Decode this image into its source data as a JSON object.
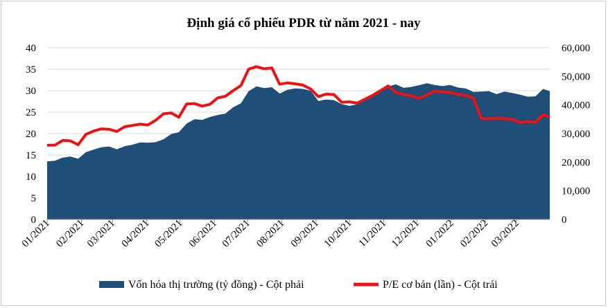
{
  "chart_data": {
    "type": "area",
    "title": "Định giá cổ phiếu PDR từ năm 2021 - nay",
    "x_tick_labels": [
      "01/2021",
      "02/2021",
      "03/2021",
      "04/2021",
      "05/2021",
      "06/2021",
      "07/2021",
      "08/2021",
      "09/2021",
      "10/2021",
      "11/2021",
      "12/2021",
      "01/2022",
      "02/2022",
      "03/2022"
    ],
    "x_range": [
      "2021-01-01",
      "2022-03-31"
    ],
    "y_left": {
      "ticks": [
        "0",
        "5",
        "10",
        "15",
        "20",
        "25",
        "30",
        "35",
        "40"
      ],
      "range": [
        0,
        40
      ]
    },
    "y_right": {
      "ticks": [
        "0",
        "10,000",
        "20,000",
        "30,000",
        "40,000",
        "50,000",
        "60,000"
      ],
      "range": [
        0,
        60000
      ]
    },
    "grid": true,
    "legend_position": "bottom",
    "series": [
      {
        "name": "Vốn hóa thị trường (tỷ đồng) - Cột phải",
        "kind": "area",
        "axis": "right",
        "color": "#1f4e79",
        "points": [
          [
            "2021-01-01",
            20300
          ],
          [
            "2021-01-08",
            20500
          ],
          [
            "2021-01-15",
            21600
          ],
          [
            "2021-01-22",
            22000
          ],
          [
            "2021-01-29",
            21200
          ],
          [
            "2021-02-05",
            23500
          ],
          [
            "2021-02-12",
            24400
          ],
          [
            "2021-02-19",
            25200
          ],
          [
            "2021-02-26",
            25500
          ],
          [
            "2021-03-05",
            24500
          ],
          [
            "2021-03-12",
            25600
          ],
          [
            "2021-03-19",
            26100
          ],
          [
            "2021-03-26",
            26900
          ],
          [
            "2021-04-02",
            26800
          ],
          [
            "2021-04-09",
            27000
          ],
          [
            "2021-04-16",
            28000
          ],
          [
            "2021-04-23",
            29800
          ],
          [
            "2021-04-30",
            30500
          ],
          [
            "2021-05-07",
            33500
          ],
          [
            "2021-05-14",
            35000
          ],
          [
            "2021-05-21",
            34800
          ],
          [
            "2021-05-28",
            35800
          ],
          [
            "2021-06-04",
            36500
          ],
          [
            "2021-06-11",
            37000
          ],
          [
            "2021-06-18",
            39200
          ],
          [
            "2021-06-25",
            40600
          ],
          [
            "2021-07-02",
            44800
          ],
          [
            "2021-07-09",
            46500
          ],
          [
            "2021-07-16",
            45900
          ],
          [
            "2021-07-23",
            46200
          ],
          [
            "2021-07-30",
            44000
          ],
          [
            "2021-08-06",
            45300
          ],
          [
            "2021-08-13",
            45800
          ],
          [
            "2021-08-20",
            45600
          ],
          [
            "2021-08-27",
            45000
          ],
          [
            "2021-09-03",
            41400
          ],
          [
            "2021-09-10",
            41900
          ],
          [
            "2021-09-17",
            41700
          ],
          [
            "2021-09-24",
            40300
          ],
          [
            "2021-10-01",
            39700
          ],
          [
            "2021-10-08",
            40200
          ],
          [
            "2021-10-15",
            41500
          ],
          [
            "2021-10-22",
            42900
          ],
          [
            "2021-10-29",
            44500
          ],
          [
            "2021-11-05",
            46500
          ],
          [
            "2021-11-12",
            47200
          ],
          [
            "2021-11-19",
            46000
          ],
          [
            "2021-11-26",
            46300
          ],
          [
            "2021-12-03",
            46900
          ],
          [
            "2021-12-10",
            47600
          ],
          [
            "2021-12-17",
            47000
          ],
          [
            "2021-12-24",
            46600
          ],
          [
            "2021-12-31",
            47000
          ],
          [
            "2022-01-07",
            46100
          ],
          [
            "2022-01-14",
            45800
          ],
          [
            "2022-01-21",
            44600
          ],
          [
            "2022-01-28",
            44700
          ],
          [
            "2022-02-04",
            44800
          ],
          [
            "2022-02-11",
            43800
          ],
          [
            "2022-02-18",
            44700
          ],
          [
            "2022-02-25",
            44200
          ],
          [
            "2022-03-04",
            43600
          ],
          [
            "2022-03-11",
            42900
          ],
          [
            "2022-03-18",
            43000
          ],
          [
            "2022-03-25",
            45600
          ],
          [
            "2022-03-31",
            44800
          ]
        ]
      },
      {
        "name": "P/E cơ bản (lần) - Cột trái",
        "kind": "line",
        "axis": "left",
        "color": "#ee1111",
        "points": [
          [
            "2021-01-01",
            17.3
          ],
          [
            "2021-01-08",
            17.3
          ],
          [
            "2021-01-15",
            18.4
          ],
          [
            "2021-01-22",
            18.3
          ],
          [
            "2021-01-29",
            17.4
          ],
          [
            "2021-02-05",
            19.8
          ],
          [
            "2021-02-12",
            20.6
          ],
          [
            "2021-02-19",
            21.1
          ],
          [
            "2021-02-26",
            21.0
          ],
          [
            "2021-03-05",
            20.5
          ],
          [
            "2021-03-12",
            21.6
          ],
          [
            "2021-03-19",
            21.9
          ],
          [
            "2021-03-26",
            22.2
          ],
          [
            "2021-04-02",
            22.0
          ],
          [
            "2021-04-09",
            23.1
          ],
          [
            "2021-04-16",
            24.6
          ],
          [
            "2021-04-23",
            24.8
          ],
          [
            "2021-04-30",
            23.8
          ],
          [
            "2021-05-07",
            26.9
          ],
          [
            "2021-05-14",
            27.0
          ],
          [
            "2021-05-21",
            26.4
          ],
          [
            "2021-05-28",
            26.8
          ],
          [
            "2021-06-04",
            28.3
          ],
          [
            "2021-06-11",
            28.7
          ],
          [
            "2021-06-18",
            30.0
          ],
          [
            "2021-06-25",
            31.2
          ],
          [
            "2021-07-02",
            35.0
          ],
          [
            "2021-07-09",
            35.6
          ],
          [
            "2021-07-16",
            35.1
          ],
          [
            "2021-07-23",
            35.3
          ],
          [
            "2021-07-30",
            31.5
          ],
          [
            "2021-08-06",
            31.8
          ],
          [
            "2021-08-13",
            31.6
          ],
          [
            "2021-08-20",
            31.3
          ],
          [
            "2021-08-27",
            30.4
          ],
          [
            "2021-09-03",
            28.6
          ],
          [
            "2021-09-10",
            29.2
          ],
          [
            "2021-09-17",
            29.1
          ],
          [
            "2021-09-24",
            27.3
          ],
          [
            "2021-10-01",
            27.4
          ],
          [
            "2021-10-08",
            27.1
          ],
          [
            "2021-10-15",
            28.0
          ],
          [
            "2021-10-22",
            28.9
          ],
          [
            "2021-10-29",
            30.0
          ],
          [
            "2021-11-05",
            31.1
          ],
          [
            "2021-11-12",
            29.6
          ],
          [
            "2021-11-19",
            29.1
          ],
          [
            "2021-11-26",
            28.8
          ],
          [
            "2021-12-03",
            28.2
          ],
          [
            "2021-12-10",
            29.0
          ],
          [
            "2021-12-17",
            29.9
          ],
          [
            "2021-12-24",
            29.7
          ],
          [
            "2021-12-31",
            29.6
          ],
          [
            "2022-01-07",
            29.1
          ],
          [
            "2022-01-14",
            28.9
          ],
          [
            "2022-01-21",
            28.3
          ],
          [
            "2022-01-28",
            23.6
          ],
          [
            "2022-02-04",
            23.4
          ],
          [
            "2022-02-11",
            23.6
          ],
          [
            "2022-02-18",
            23.5
          ],
          [
            "2022-02-25",
            23.3
          ],
          [
            "2022-03-04",
            22.6
          ],
          [
            "2022-03-11",
            22.8
          ],
          [
            "2022-03-18",
            22.6
          ],
          [
            "2022-03-25",
            24.4
          ],
          [
            "2022-03-31",
            23.8
          ]
        ]
      }
    ]
  }
}
